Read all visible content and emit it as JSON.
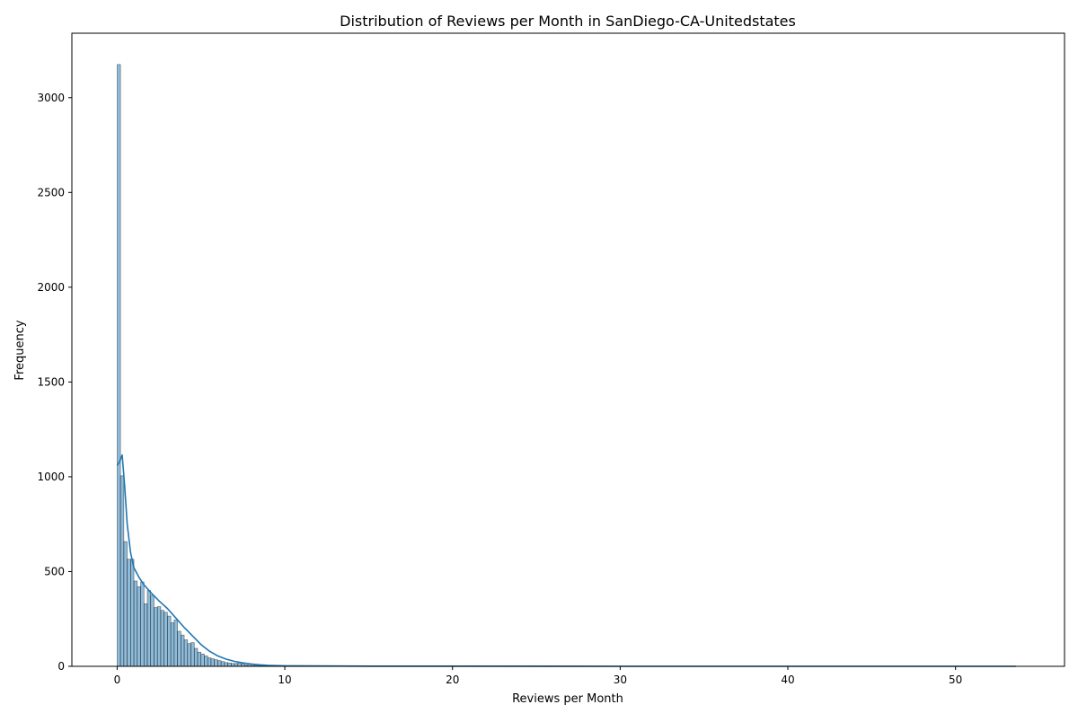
{
  "chart_data": {
    "type": "bar",
    "subtype": "histogram-with-kde",
    "title": "Distribution of Reviews per Month in SanDiego-CA-Unitedstates",
    "xlabel": "Reviews per Month",
    "ylabel": "Frequency",
    "xlim": [
      -2.7,
      56.5
    ],
    "ylim": [
      0,
      3340
    ],
    "xticks": [
      0,
      10,
      20,
      30,
      40,
      50
    ],
    "yticks": [
      0,
      500,
      1000,
      1500,
      2000,
      2500,
      3000
    ],
    "grid": false,
    "legend": "none",
    "bar_color": "#1f77b4",
    "bar_fill_opacity": 0.5,
    "line_color": "#1f77b4",
    "bin_width": 0.2,
    "bins": {
      "x_start": [
        0.0,
        0.2,
        0.4,
        0.6,
        0.8,
        1.0,
        1.2,
        1.4,
        1.6,
        1.8,
        2.0,
        2.2,
        2.4,
        2.6,
        2.8,
        3.0,
        3.2,
        3.4,
        3.6,
        3.8,
        4.0,
        4.2,
        4.4,
        4.6,
        4.8,
        5.0,
        5.2,
        5.4,
        5.6,
        5.8,
        6.0,
        6.2,
        6.4,
        6.6,
        6.8,
        7.0,
        7.2,
        7.4,
        7.6,
        7.8,
        8.0,
        8.2,
        8.4,
        8.6,
        8.8,
        9.0,
        9.2,
        9.4,
        9.6,
        9.8,
        10.0,
        10.4,
        10.8,
        11.2,
        11.6,
        12.0,
        12.4
      ],
      "counts": [
        3175,
        1005,
        658,
        565,
        565,
        450,
        420,
        445,
        330,
        400,
        375,
        310,
        315,
        295,
        285,
        265,
        230,
        245,
        185,
        165,
        140,
        120,
        125,
        95,
        75,
        65,
        55,
        45,
        40,
        35,
        30,
        25,
        20,
        18,
        15,
        15,
        18,
        12,
        8,
        6,
        5,
        5,
        4,
        4,
        5,
        3,
        3,
        2,
        2,
        2,
        2,
        2,
        1,
        1,
        1,
        1,
        1
      ]
    },
    "kde": {
      "x": [
        0.0,
        0.15,
        0.3,
        0.45,
        0.6,
        0.8,
        1.0,
        1.3,
        1.6,
        2.0,
        2.5,
        3.0,
        3.5,
        4.0,
        4.5,
        5.0,
        5.5,
        6.0,
        6.5,
        7.0,
        7.5,
        8.0,
        8.5,
        9.0,
        10.0,
        12.0,
        15.0,
        20.0,
        30.0,
        40.0,
        50.0,
        53.6
      ],
      "y": [
        1060,
        1080,
        1115,
        950,
        750,
        600,
        520,
        470,
        430,
        390,
        345,
        305,
        255,
        205,
        160,
        115,
        80,
        55,
        38,
        26,
        18,
        12,
        8,
        5,
        3,
        2,
        1,
        1,
        0,
        0,
        0,
        0
      ]
    }
  }
}
